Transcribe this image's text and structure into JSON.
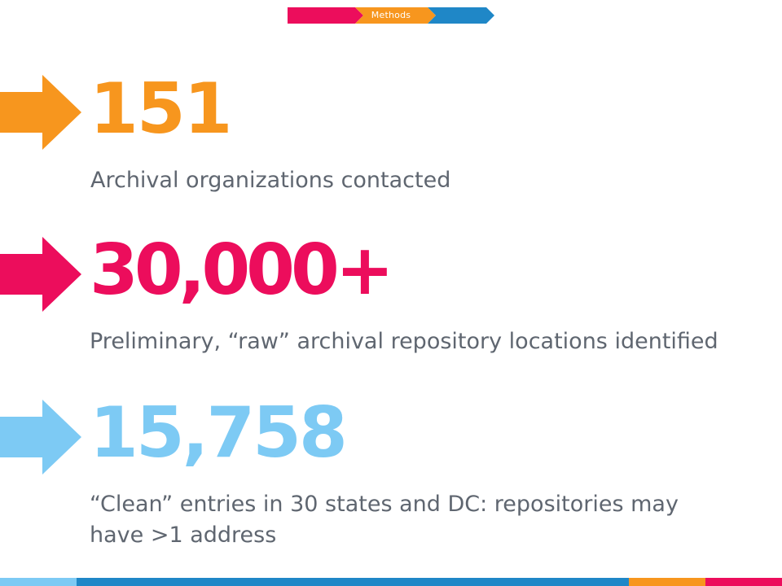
{
  "header": {
    "step_label": "Methods"
  },
  "stats": [
    {
      "number": "151",
      "description": "Archival organizations contacted",
      "color": "#f7961e"
    },
    {
      "number": "30,000+",
      "description": "Preliminary, “raw” archival repository locations identified",
      "color": "#ec0d5c"
    },
    {
      "number": "15,758",
      "description": "“Clean” entries in 30 states and DC: repositories may have >1 address",
      "color": "#7dcaf4"
    }
  ],
  "colors": {
    "orange": "#f7961e",
    "pink": "#ec0d5c",
    "light_blue": "#7dcaf4",
    "blue": "#1f87c7",
    "desc_text": "#5f6670"
  }
}
